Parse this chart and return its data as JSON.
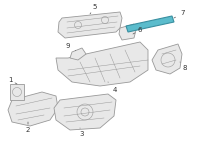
{
  "bg_color": "#ffffff",
  "highlight_color": "#5bbccc",
  "highlight_stroke": "#3a8fa0",
  "part_color": "#e8e8e8",
  "part_stroke": "#999999",
  "line_color": "#555555",
  "label_color": "#333333",
  "label_fs": 5.0
}
